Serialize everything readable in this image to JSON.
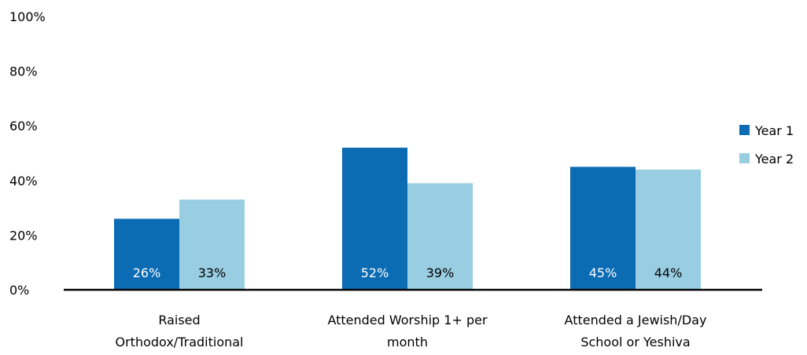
{
  "chart_data": {
    "type": "bar",
    "categories": [
      [
        "Raised",
        "Orthodox/Traditional"
      ],
      [
        "Attended Worship 1+ per",
        "month"
      ],
      [
        "Attended a Jewish/Day",
        "School or Yeshiva"
      ]
    ],
    "series": [
      {
        "name": "Year 1",
        "values": [
          26,
          52,
          45
        ],
        "labels": [
          "26%",
          "52%",
          "45%"
        ],
        "color": "#0b6bb3",
        "label_color": "#ffffff"
      },
      {
        "name": "Year 2",
        "values": [
          33,
          39,
          44
        ],
        "labels": [
          "33%",
          "39%",
          "44%"
        ],
        "color": "#99cde1",
        "label_color": "#000000"
      }
    ],
    "y_ticks": [
      "0%",
      "20%",
      "40%",
      "60%",
      "80%",
      "100%"
    ],
    "ylim": [
      0,
      100
    ],
    "grid": false,
    "legend_position": "right",
    "data_label_position": "inside-bottom"
  }
}
